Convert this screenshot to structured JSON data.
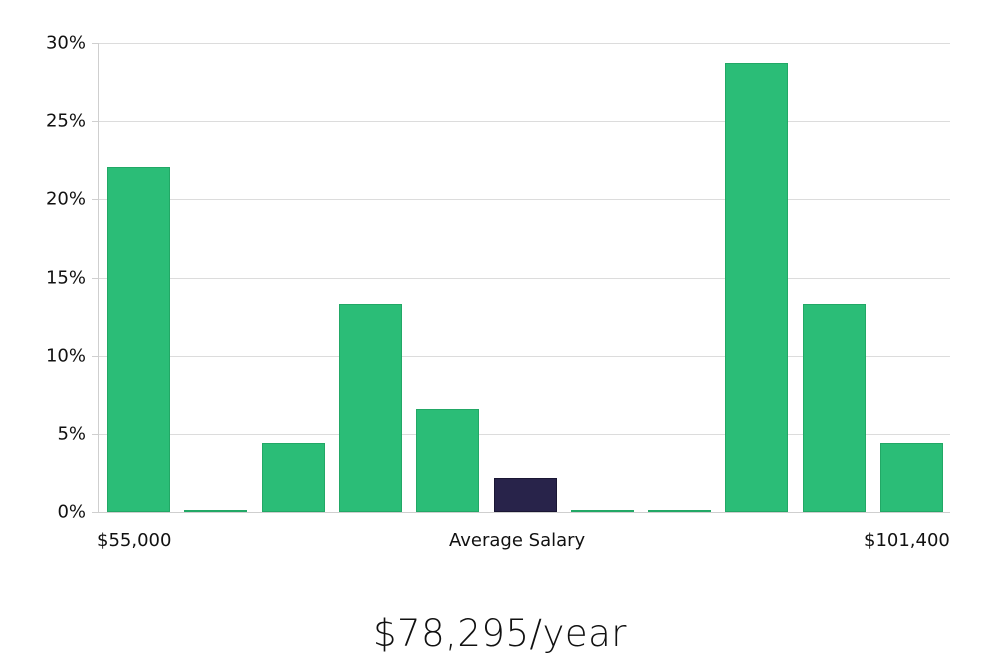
{
  "chart_data": {
    "type": "bar",
    "title": "",
    "xlabel": "Average Salary",
    "ylabel": "",
    "ylim": [
      0,
      30
    ],
    "yticks": [
      "0%",
      "5%",
      "10%",
      "15%",
      "20%",
      "25%",
      "30%"
    ],
    "grid": true,
    "legend": null,
    "x_range_labels": {
      "min": "$55,000",
      "max": "$101,400"
    },
    "categories": [
      "bin1",
      "bin2",
      "bin3",
      "bin4",
      "bin5",
      "bin6",
      "bin7",
      "bin8",
      "bin9",
      "bin10",
      "bin11"
    ],
    "values": [
      22.1,
      0.1,
      4.4,
      13.3,
      6.6,
      2.2,
      0.1,
      0.1,
      28.7,
      13.3,
      4.4
    ],
    "highlight_index": 5,
    "colors": {
      "bar": "#2bbd77",
      "highlight": "#28234a",
      "grid": "#dcdcdc"
    }
  },
  "labels": {
    "x_min": "$55,000",
    "x_center": "Average Salary",
    "x_max": "$101,400"
  },
  "summary": {
    "salary": "$78,295/year"
  }
}
